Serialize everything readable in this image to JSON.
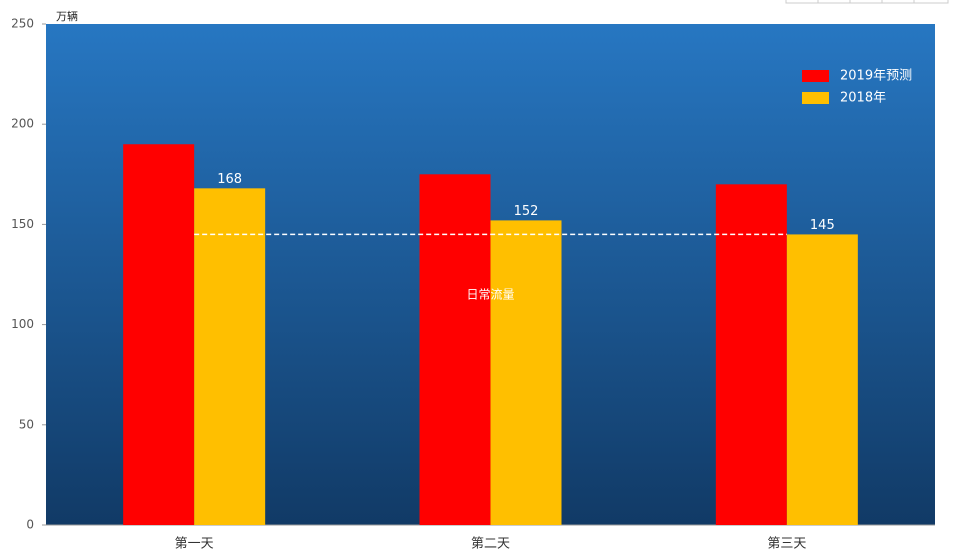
{
  "chart_data": {
    "type": "bar",
    "y_unit": "万辆",
    "categories": [
      "第一天",
      "第二天",
      "第三天"
    ],
    "series": [
      {
        "name": "2019年预测",
        "color": "#ff0000",
        "values": [
          190,
          175,
          170
        ],
        "labels": false
      },
      {
        "name": "2018年",
        "color": "#ffbf00",
        "values": [
          168,
          152,
          145
        ],
        "labels": true
      }
    ],
    "reference_line": {
      "value": 145,
      "label": "日常流量"
    },
    "ylim": [
      0,
      250
    ],
    "yticks": [
      0,
      50,
      100,
      150,
      200,
      250
    ],
    "legend": "top-right"
  }
}
